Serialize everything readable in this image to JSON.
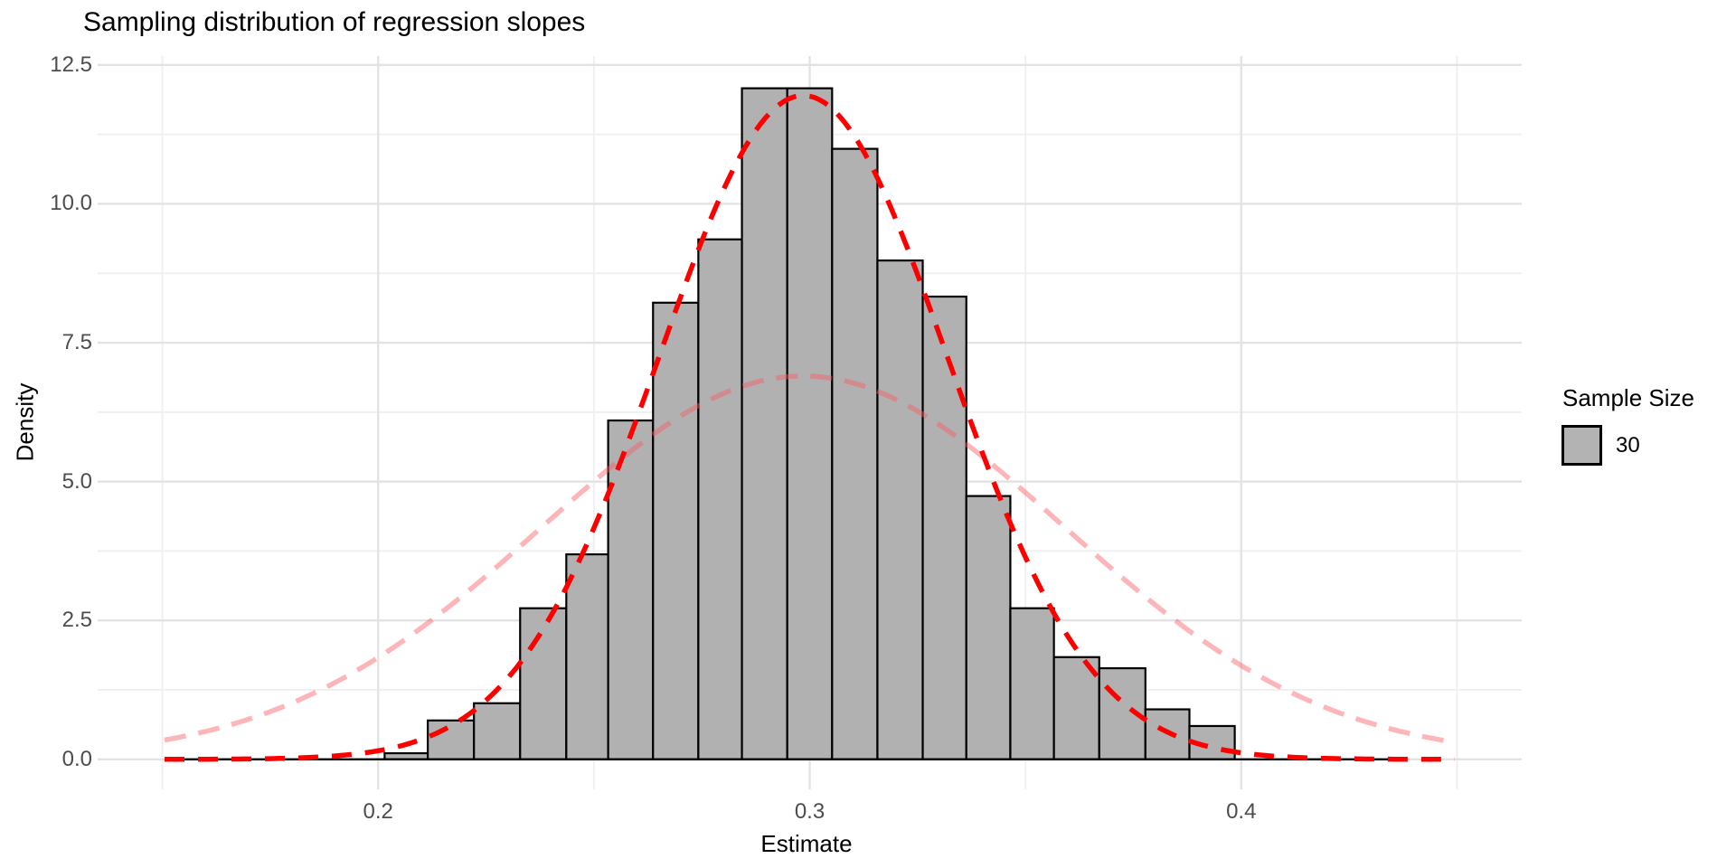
{
  "chart_data": {
    "type": "histogram",
    "title": "Sampling distribution of regression slopes",
    "xlabel": "Estimate",
    "ylabel": "Density",
    "grid": {
      "major_color": "#e3e3e3",
      "minor_color": "#f0f0f0",
      "major_width": 2.4,
      "minor_width": 2
    },
    "axes": {
      "x": {
        "label": "Estimate",
        "tick_values": [
          0.2,
          0.3,
          0.4
        ],
        "tick_labels": [
          "0.2",
          "0.3",
          "0.4"
        ],
        "minor_values": [
          0.15,
          0.25,
          0.35,
          0.45
        ],
        "lim": [
          0.135,
          0.465
        ]
      },
      "y": {
        "label": "Density",
        "tick_values": [
          0,
          2.5,
          5,
          7.5,
          10,
          12.5
        ],
        "tick_labels": [
          "0.0",
          "2.5",
          "5.0",
          "7.5",
          "10.0",
          "12.5"
        ],
        "minor_values": [
          1.25,
          3.75,
          6.25,
          8.75,
          11.25
        ],
        "lim": [
          -0.54,
          12.66
        ]
      }
    },
    "bins": {
      "edges": [
        0.2015,
        0.2115,
        0.2222,
        0.2329,
        0.2436,
        0.2533,
        0.2637,
        0.2742,
        0.2843,
        0.2948,
        0.3052,
        0.3157,
        0.3262,
        0.3363,
        0.3465,
        0.3566,
        0.3671,
        0.3778,
        0.388,
        0.3985
      ],
      "densities": [
        0.11,
        0.7,
        1.01,
        2.72,
        3.69,
        6.1,
        8.22,
        9.36,
        12.08,
        12.08,
        10.99,
        8.98,
        8.33,
        4.74,
        2.72,
        1.84,
        1.64,
        0.9,
        0.6
      ],
      "fill": "#b1b1b1",
      "border": "#000000",
      "border_width": 2.2
    },
    "zero_line": {
      "range": [
        0.1505,
        0.437
      ],
      "color": "#000000",
      "width": 2.4
    },
    "curves": [
      {
        "name": "wide-normal-reference",
        "mean": 0.2985,
        "sd": 0.0605,
        "peak": 6.9,
        "color": "rgba(248,90,100,0.45)",
        "dash": [
          24,
          14
        ],
        "width": 5.5,
        "range": [
          0.1505,
          0.4495
        ]
      },
      {
        "name": "normal-fit-n30",
        "mean": 0.2985,
        "sd": 0.0334,
        "peak": 11.95,
        "color": "#ff0000",
        "dash": [
          22,
          15
        ],
        "width": 5.5,
        "range": [
          0.1505,
          0.4495
        ]
      }
    ],
    "legend": {
      "title": "Sample Size",
      "items": [
        {
          "label": "30",
          "fill": "#b3b3b3",
          "border": "#000000"
        }
      ]
    }
  }
}
